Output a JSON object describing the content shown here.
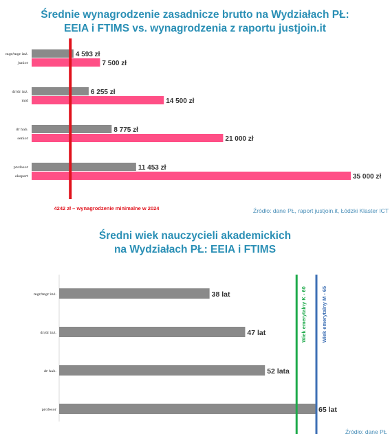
{
  "colors": {
    "title": "#2a8fb5",
    "grey_bar": "#8a8a8a",
    "pink_bar": "#ff4f86",
    "min_wage_line": "#e0121c",
    "retire_k_line": "#1faa4b",
    "retire_m_line": "#3d6fb4",
    "source": "#4a8fb8",
    "axis": "#d9d9d9"
  },
  "chart_data": [
    {
      "type": "bar",
      "orientation": "horizontal",
      "title": "Średnie wynagrodzenie zasadnicze brutto na Wydziałach PŁ: EEIA i FTIMS vs. wynagrodzenia z raportu justjoin.it",
      "title_lines": [
        "Średnie wynagrodzenie zasadnicze brutto na Wydziałach PŁ:",
        "EEIA i FTIMS vs. wynagrodzenia z raportu justjoin.it"
      ],
      "groups": [
        {
          "academic": "mgr/mgr inż.",
          "industry": "junior",
          "academic_value": 4593,
          "industry_value": 7500,
          "academic_label": "4 593 zł",
          "industry_label": "7 500 zł"
        },
        {
          "academic": "dr/dr inż.",
          "industry": "mid",
          "academic_value": 6255,
          "industry_value": 14500,
          "academic_label": "6 255 zł",
          "industry_label": "14 500 zł"
        },
        {
          "academic": "dr hab.",
          "industry": "senior",
          "academic_value": 8775,
          "industry_value": 21000,
          "academic_label": "8 775 zł",
          "industry_label": "21 000 zł"
        },
        {
          "academic": "profesor",
          "industry": "ekspert",
          "academic_value": 11453,
          "industry_value": 35000,
          "academic_label": "11 453 zł",
          "industry_label": "35 000 zł"
        }
      ],
      "xlim": [
        0,
        35000
      ],
      "reference_line": {
        "value": 4242,
        "label": "4242 zł – wynagrodzenie minimalne w 2024"
      },
      "source": "Źródło: dane PŁ, raport justjoin.it, Łódzki Klaster ICT"
    },
    {
      "type": "bar",
      "orientation": "horizontal",
      "title": "Średni wiek nauczycieli akademickich na Wydziałach PŁ: EEIA i FTIMS",
      "title_lines": [
        "Średni wiek nauczycieli akademickich",
        "na Wydziałach PŁ: EEIA i FTIMS"
      ],
      "categories": [
        "mgr/mgr inż.",
        "dr/dr inż.",
        "dr hab.",
        "profesor"
      ],
      "values": [
        38,
        47,
        52,
        65
      ],
      "value_labels": [
        "38 lat",
        "47 lat",
        "52 lata",
        "65 lat"
      ],
      "xlim": [
        0,
        65
      ],
      "reference_lines": [
        {
          "value": 60,
          "label": "Wiek emerytalny K - 60"
        },
        {
          "value": 65,
          "label": "Wiek emerytalny M - 65"
        }
      ],
      "source": "Źródło: dane PŁ"
    }
  ]
}
